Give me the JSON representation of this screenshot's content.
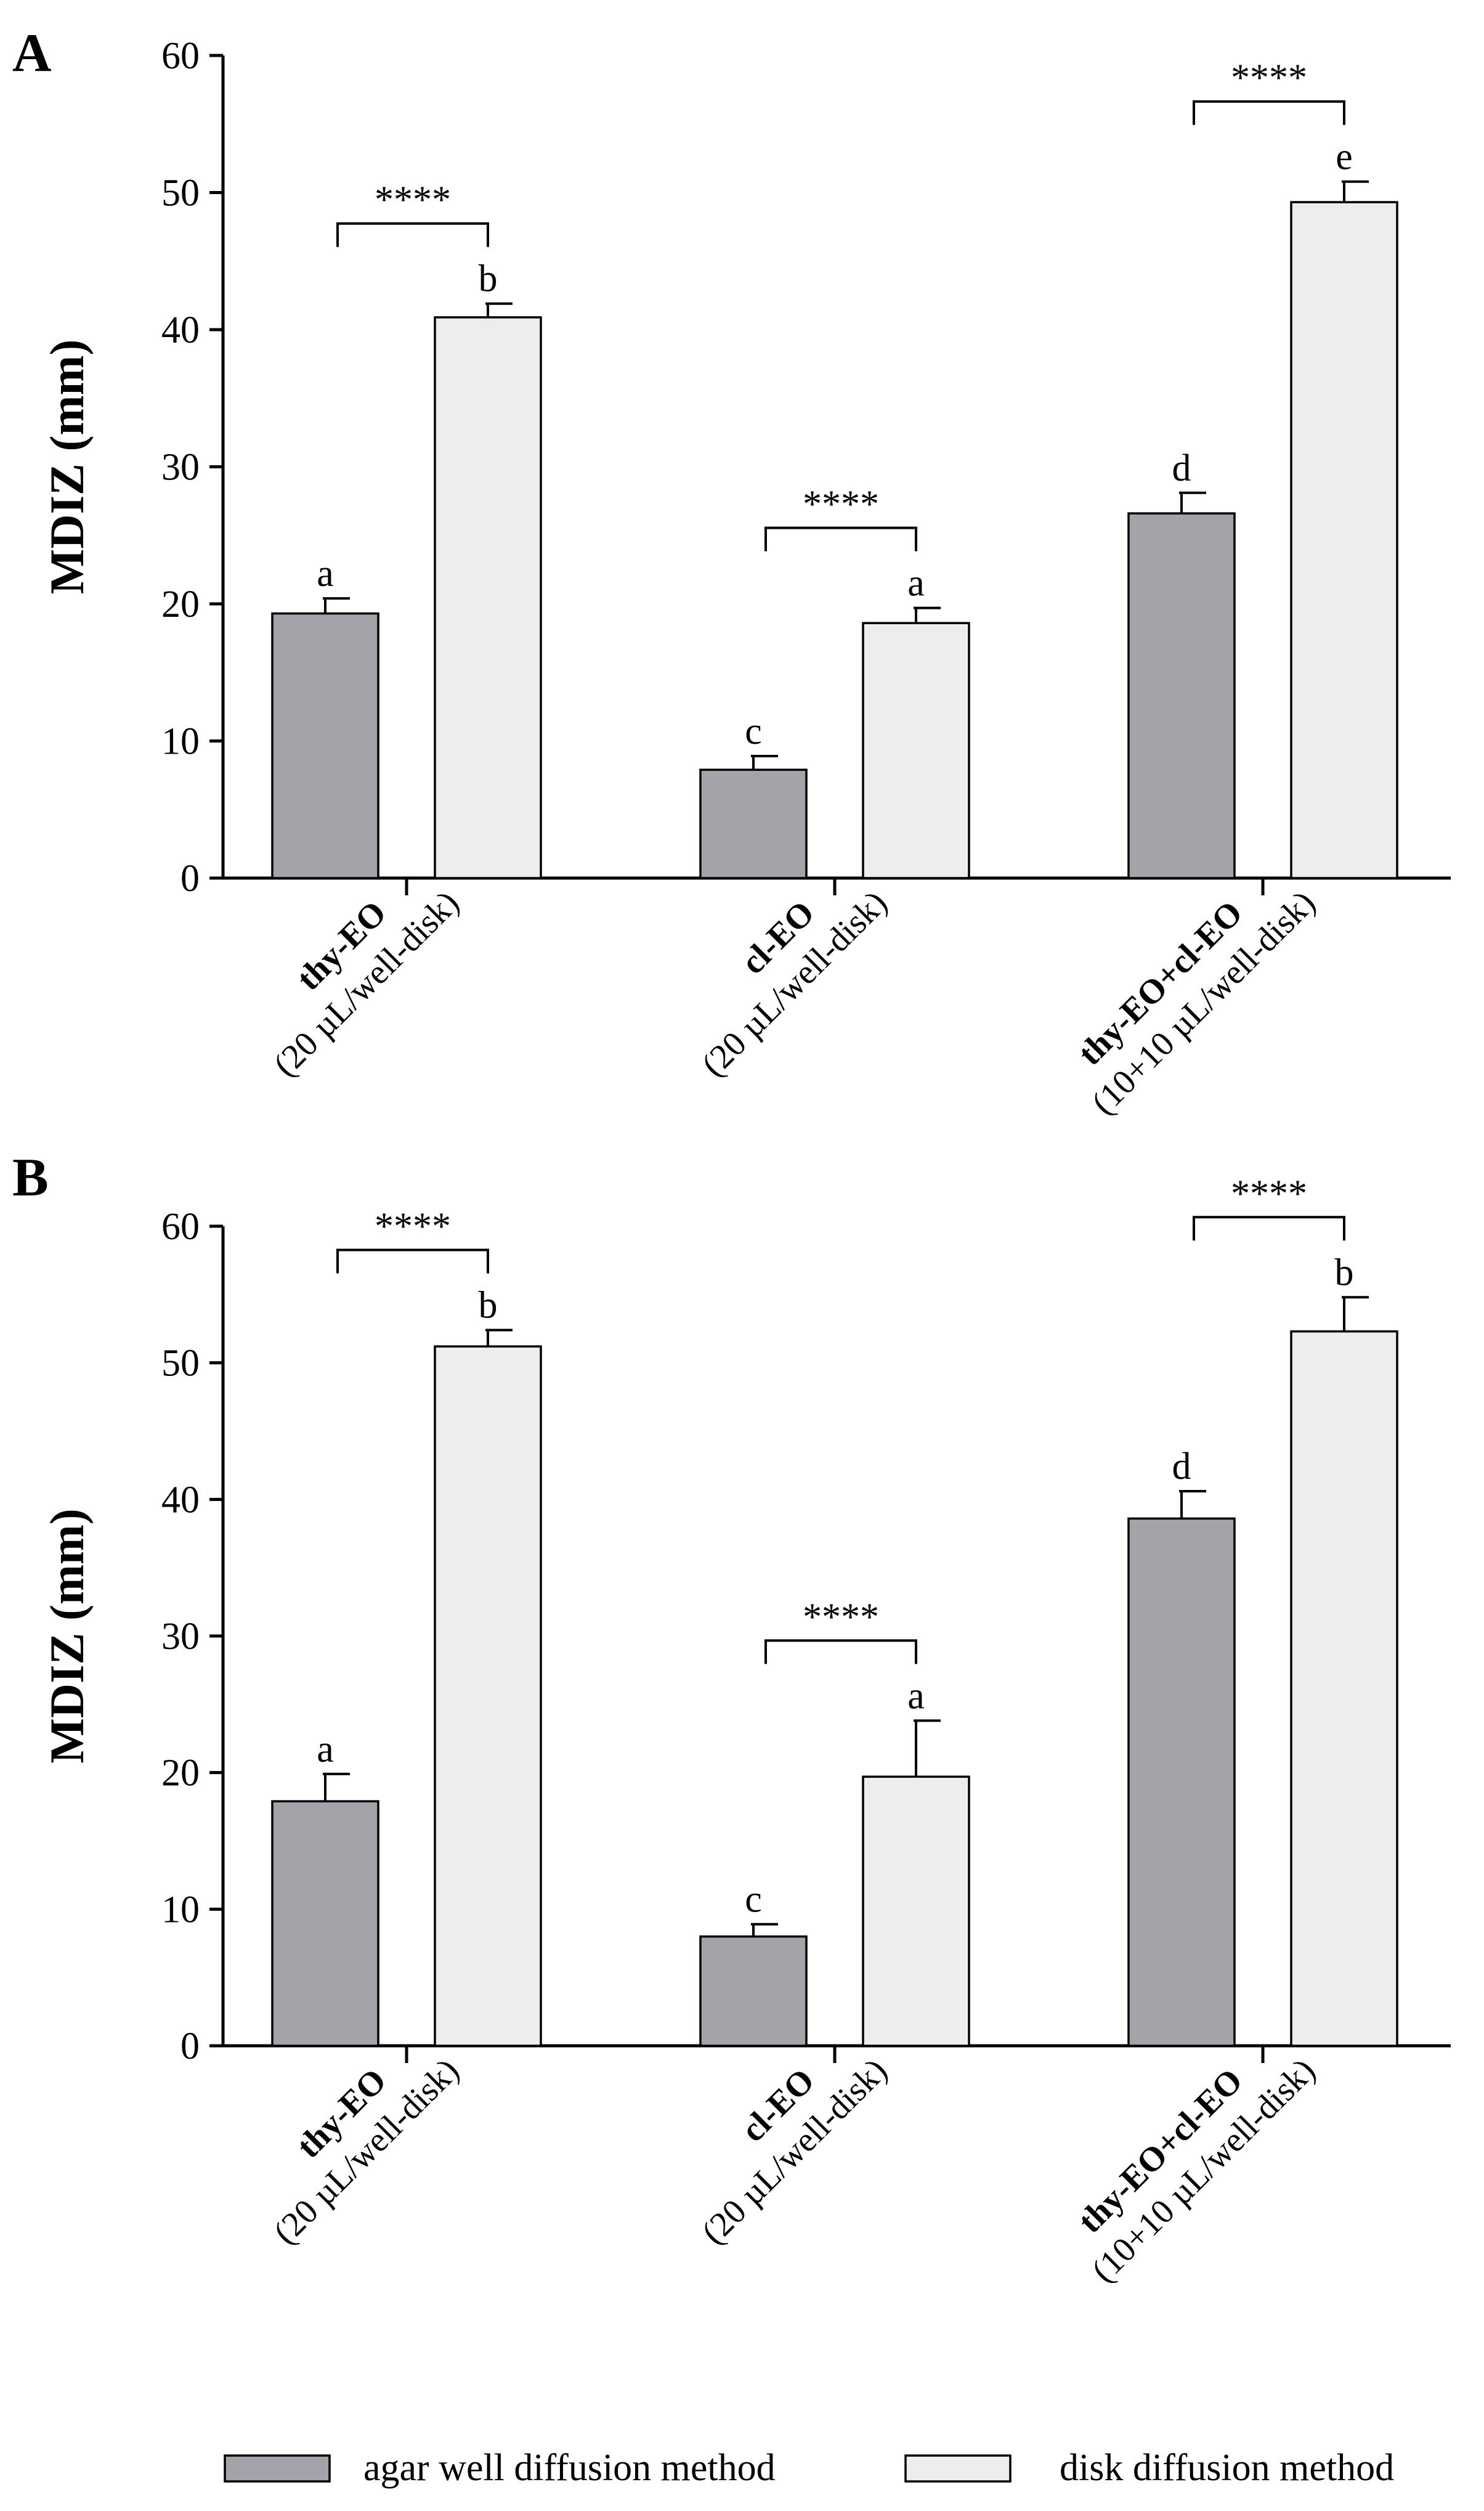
{
  "colors": {
    "agar_fill": "#a3a3a9",
    "disk_fill": "#ededed",
    "axis": "#000000"
  },
  "legend": {
    "agar_label": "agar well diffusion method",
    "disk_label": "disk diffusion method"
  },
  "chart_data": [
    {
      "type": "bar",
      "panel": "A",
      "ylabel": "MDIZ (mm)",
      "ylim": [
        0,
        60
      ],
      "yticks": [
        0,
        10,
        20,
        30,
        40,
        50,
        60
      ],
      "categories": [
        {
          "name": "thy-EO",
          "sub": "(20 µL/well-disk)"
        },
        {
          "name": "cl-EO",
          "sub": "(20 µL/well-disk)"
        },
        {
          "name": "thy-EO+cl-EO",
          "sub": "(10+10 µL/well-disk)"
        }
      ],
      "series": [
        {
          "name": "agar well diffusion method",
          "values": [
            19.3,
            7.9,
            26.6
          ],
          "errors": [
            1.1,
            1.0,
            1.5
          ],
          "letters": [
            "a",
            "c",
            "d"
          ]
        },
        {
          "name": "disk diffusion method",
          "values": [
            40.9,
            18.6,
            49.3
          ],
          "errors": [
            1.0,
            1.1,
            1.5
          ],
          "letters": [
            "b",
            "a",
            "e"
          ]
        }
      ],
      "significance": [
        "****",
        "****",
        "****"
      ]
    },
    {
      "type": "bar",
      "panel": "B",
      "ylabel": "MDIZ (mm)",
      "ylim": [
        0,
        60
      ],
      "yticks": [
        0,
        10,
        20,
        30,
        40,
        50,
        60
      ],
      "categories": [
        {
          "name": "thy-EO",
          "sub": "(20 µL/well-disk)"
        },
        {
          "name": "cl-EO",
          "sub": "(20 µL/well-disk)"
        },
        {
          "name": "thy-EO+cl-EO",
          "sub": "(10+10 µL/well-disk)"
        }
      ],
      "series": [
        {
          "name": "agar well diffusion method",
          "values": [
            17.9,
            8.0,
            38.6
          ],
          "errors": [
            2.0,
            0.9,
            2.0
          ],
          "letters": [
            "a",
            "c",
            "d"
          ]
        },
        {
          "name": "disk diffusion method",
          "values": [
            51.2,
            19.7,
            52.3
          ],
          "errors": [
            1.2,
            4.1,
            2.5
          ],
          "letters": [
            "b",
            "a",
            "b"
          ]
        }
      ],
      "significance": [
        "****",
        "****",
        "****"
      ]
    }
  ]
}
